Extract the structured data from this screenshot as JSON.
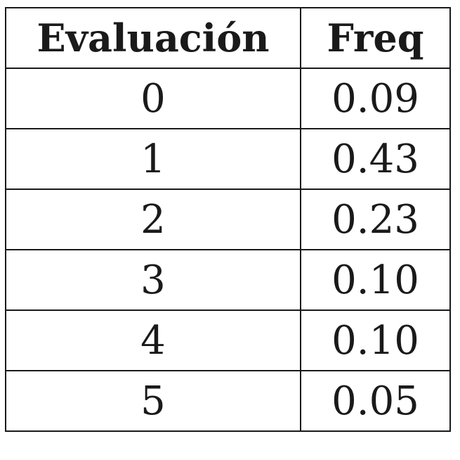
{
  "chart_data": {
    "type": "table",
    "columns": [
      "Evaluación",
      "Freq"
    ],
    "rows": [
      [
        "0",
        "0.09"
      ],
      [
        "1",
        "0.43"
      ],
      [
        "2",
        "0.23"
      ],
      [
        "3",
        "0.10"
      ],
      [
        "4",
        "0.10"
      ],
      [
        "5",
        "0.05"
      ]
    ]
  }
}
